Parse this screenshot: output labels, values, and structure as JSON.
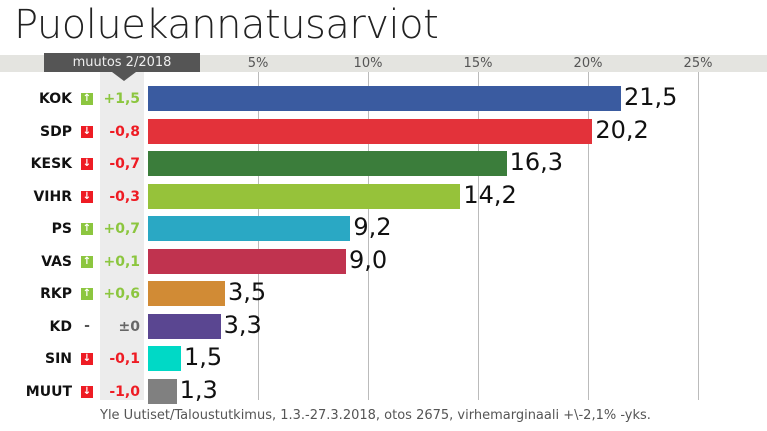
{
  "chart_data": {
    "type": "bar",
    "orientation": "horizontal",
    "title": "Puoluekannatusarviot",
    "change_header": "muutos 2/2018",
    "x_ticks": [
      "5%",
      "10%",
      "15%",
      "20%",
      "25%"
    ],
    "x_tick_values": [
      5,
      10,
      15,
      20,
      25
    ],
    "xlim": [
      0,
      25
    ],
    "grid": true,
    "categories": [
      "KOK",
      "SDP",
      "KESK",
      "VIHR",
      "PS",
      "VAS",
      "RKP",
      "KD",
      "SIN",
      "MUUT"
    ],
    "values": [
      21.5,
      20.2,
      16.3,
      14.2,
      9.2,
      9.0,
      3.5,
      3.3,
      1.5,
      1.3
    ],
    "value_labels": [
      "21,5",
      "20,2",
      "16,3",
      "14,2",
      "9,2",
      "9,0",
      "3,5",
      "3,3",
      "1,5",
      "1,3"
    ],
    "changes": [
      "+1,5",
      "-0,8",
      "-0,7",
      "-0,3",
      "+0,7",
      "+0,1",
      "+0,6",
      "±0",
      "-0,1",
      "-1,0"
    ],
    "change_direction": [
      "up",
      "down",
      "down",
      "down",
      "up",
      "up",
      "up",
      "none",
      "down",
      "down"
    ],
    "colors": [
      "#3a5ba0",
      "#e3323a",
      "#3b7d3b",
      "#96c23a",
      "#2aa8c4",
      "#c0334f",
      "#d18b35",
      "#5a4691",
      "#00d9c6",
      "#808080"
    ],
    "up_color": "#8cc63f",
    "down_color": "#ee1c24",
    "none_change_symbol": "-",
    "source": "Yle Uutiset/Taloustutkimus, 1.3.-27.3.2018, otos 2675, virhemarginaali +\\-2,1% -yks."
  }
}
